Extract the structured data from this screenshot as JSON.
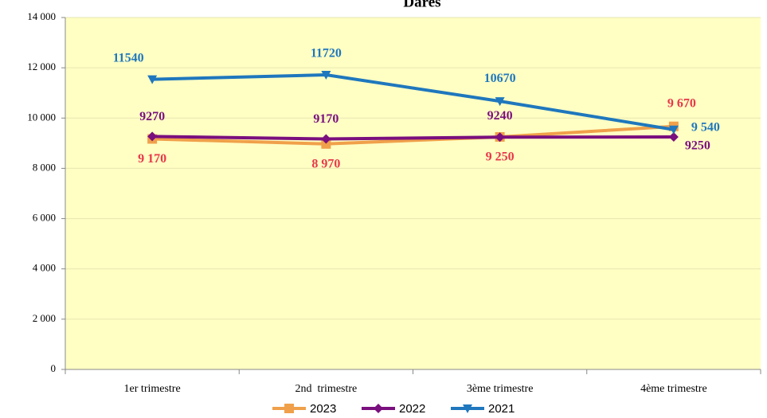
{
  "chart_data": {
    "type": "line",
    "title": "Dares",
    "categories": [
      "1er trimestre",
      "2nd  trimestre",
      "3ème trimestre",
      "4ème trimestre"
    ],
    "ylim": [
      0,
      14000
    ],
    "yticks": [
      {
        "value": 0,
        "label": "0"
      },
      {
        "value": 2000,
        "label": "2 000"
      },
      {
        "value": 4000,
        "label": "4 000"
      },
      {
        "value": 6000,
        "label": "6 000"
      },
      {
        "value": 8000,
        "label": "8 000"
      },
      {
        "value": 10000,
        "label": "10 000"
      },
      {
        "value": 12000,
        "label": "12 000"
      },
      {
        "value": 14000,
        "label": "14 000"
      }
    ],
    "grid": true,
    "legend": "bottom",
    "series": [
      {
        "name": "2023",
        "color": "#f0a04a",
        "label_color": "#e8374a",
        "marker": "square",
        "values": [
          9170,
          8970,
          9250,
          9670
        ],
        "value_labels": [
          "9 170",
          "8 970",
          "9 250",
          "9 670"
        ]
      },
      {
        "name": "2022",
        "color": "#7a0f7e",
        "label_color": "#7a0f7e",
        "marker": "diamond",
        "values": [
          9270,
          9170,
          9240,
          9250
        ],
        "value_labels": [
          "9270",
          "9170",
          "9240",
          "9250"
        ]
      },
      {
        "name": "2021",
        "color": "#1f77bd",
        "label_color": "#1f77bd",
        "marker": "triangle-down",
        "values": [
          11540,
          11720,
          10670,
          9540
        ],
        "value_labels": [
          "11540",
          "11720",
          "10670",
          "9 540"
        ]
      }
    ]
  }
}
